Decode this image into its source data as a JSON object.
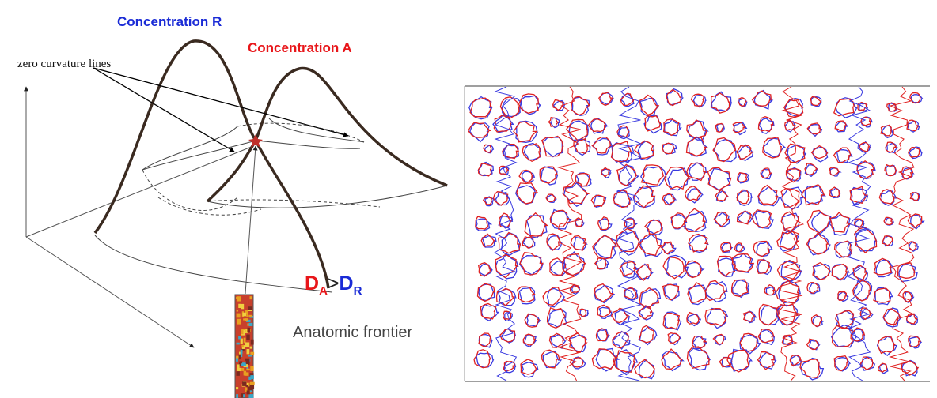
{
  "labels": {
    "concentration_r": "Concentration R",
    "concentration_a": "Concentration A",
    "zero_curvature": "zero curvature lines",
    "frontier": "Anatomic frontier"
  },
  "inequality": {
    "left": "D",
    "left_sub": "A",
    "operator": ">",
    "right": "D",
    "right_sub": "R"
  }
}
